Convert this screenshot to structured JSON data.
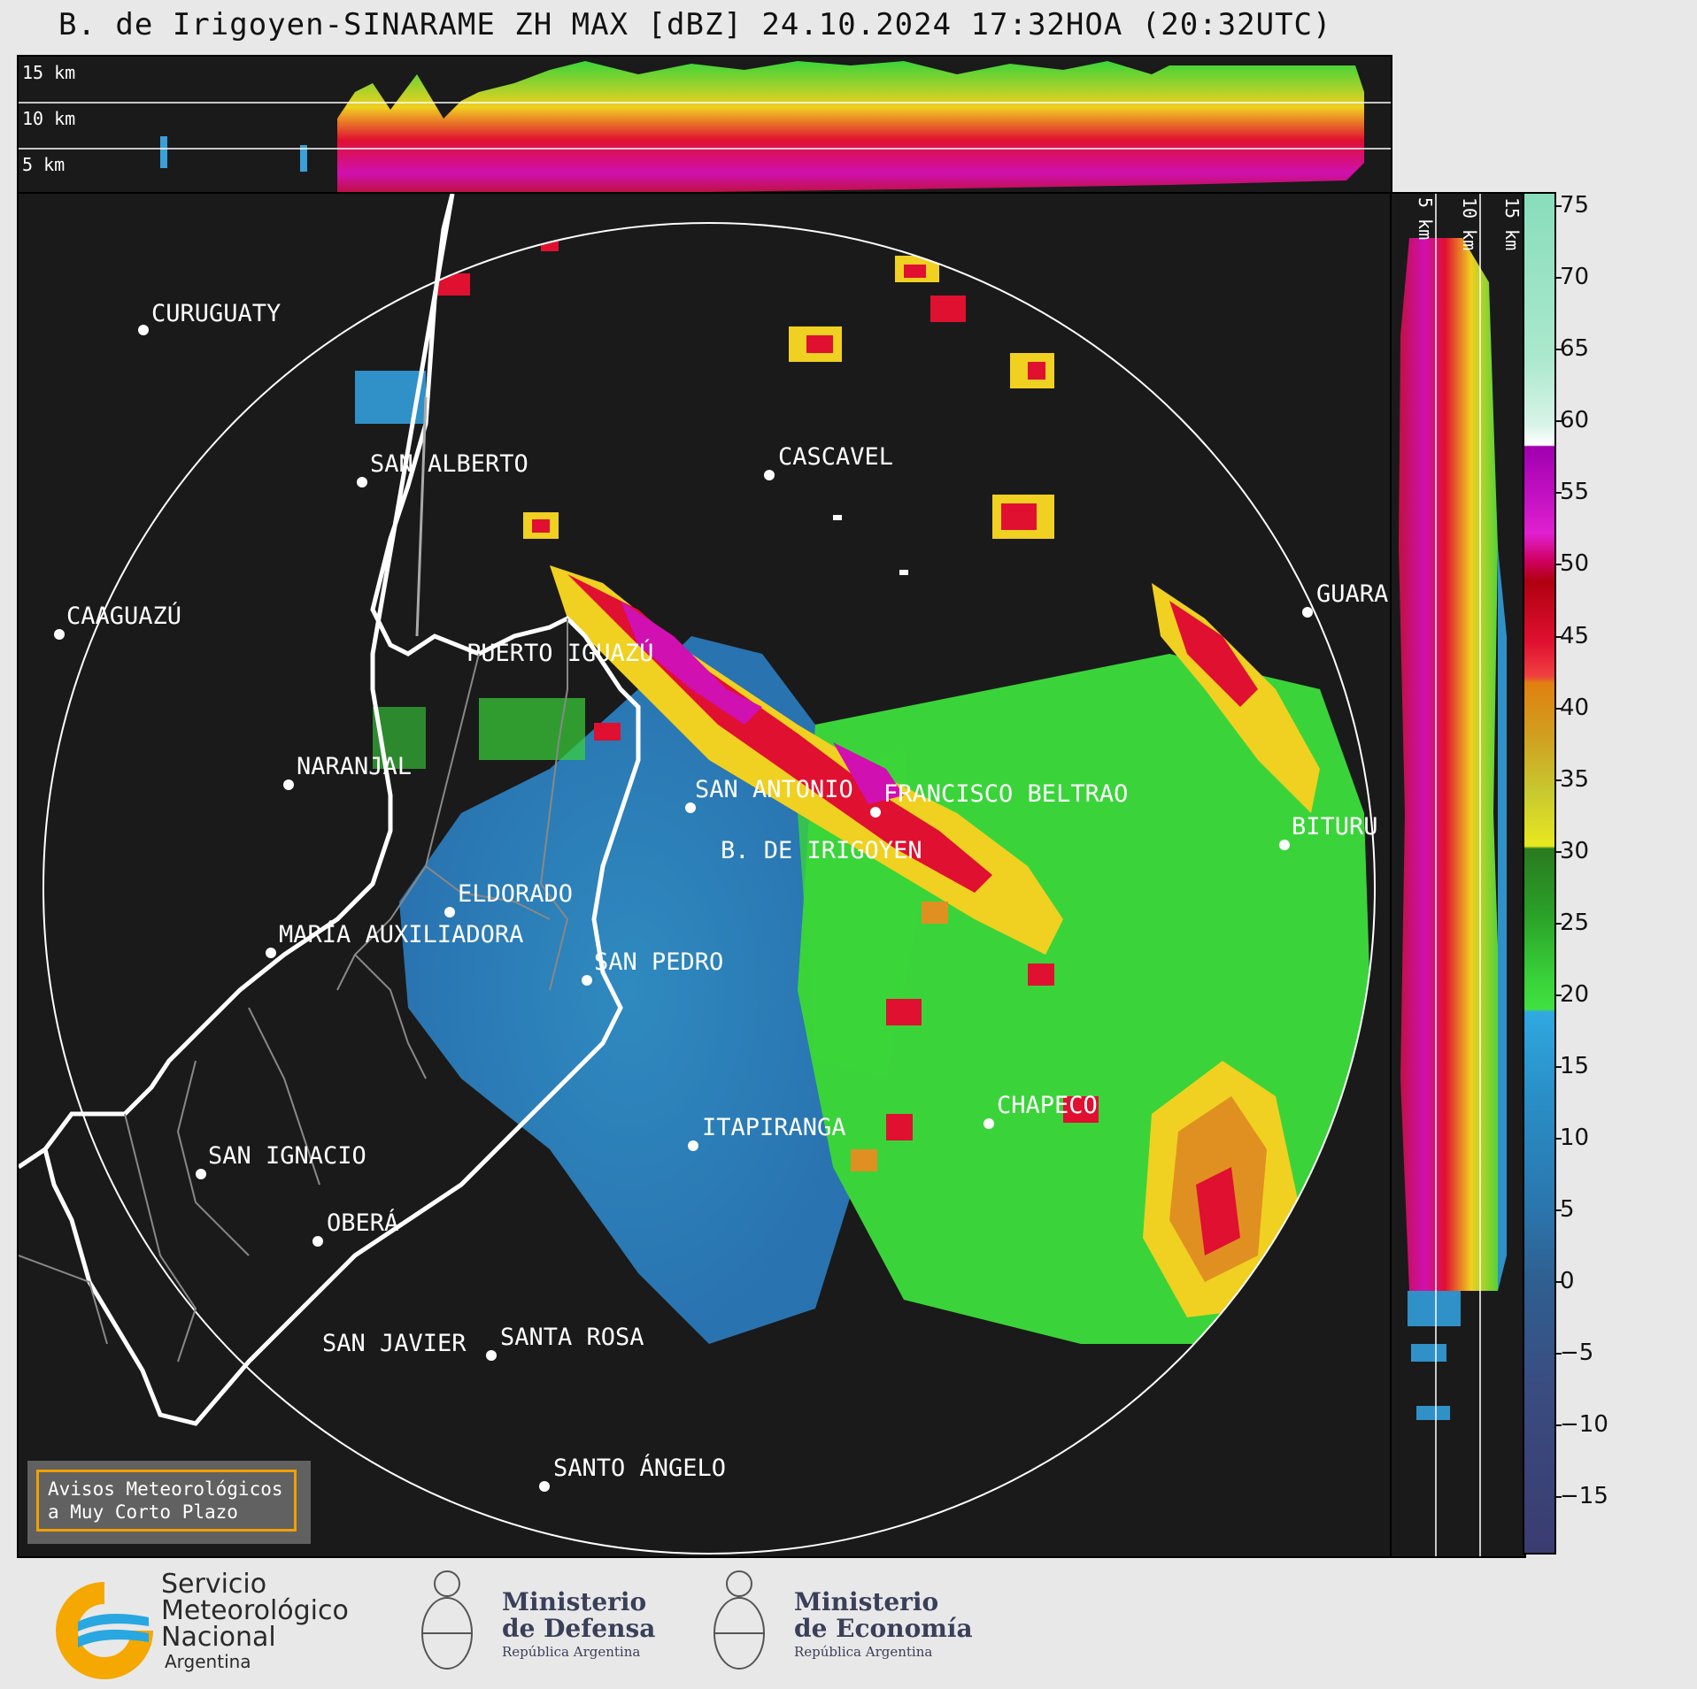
{
  "title": "B. de Irigoyen-SINARAME ZH MAX [dBZ] 24.10.2024 17:32HOA (20:32UTC)",
  "top_panel": {
    "altitude_labels": [
      "15 km",
      "10 km",
      "5 km"
    ]
  },
  "side_panel": {
    "altitude_labels": [
      "5 km",
      "10 km",
      "15 km"
    ]
  },
  "colorbar": {
    "unit": "dBZ",
    "ticks": [
      "75",
      "70",
      "65",
      "60",
      "55",
      "50",
      "45",
      "40",
      "35",
      "30",
      "25",
      "20",
      "15",
      "10",
      "5",
      "0",
      "−5",
      "−10",
      "−15"
    ],
    "range": [
      -19,
      76
    ]
  },
  "cities": [
    {
      "name": "CURUGUATY"
    },
    {
      "name": "SAN ALBERTO"
    },
    {
      "name": "CASCAVEL"
    },
    {
      "name": "CAAGUAZÚ"
    },
    {
      "name": "GUARA"
    },
    {
      "name": "PUERTO IGUAZÚ"
    },
    {
      "name": "NARANJAL"
    },
    {
      "name": "SAN ANTONIO"
    },
    {
      "name": "FRANCISCO BELTRAO"
    },
    {
      "name": "BITURU"
    },
    {
      "name": "B. DE IRIGOYEN"
    },
    {
      "name": "ELDORADO"
    },
    {
      "name": "MARÍA AUXILIADORA"
    },
    {
      "name": "SAN PEDRO"
    },
    {
      "name": "CHAPECO"
    },
    {
      "name": "ITAPIRANGA"
    },
    {
      "name": "SAN IGNACIO"
    },
    {
      "name": "OBERÁ"
    },
    {
      "name": "SAN JAVIER"
    },
    {
      "name": "SANTA ROSA"
    },
    {
      "name": "SANTO ÁNGELO"
    }
  ],
  "notice": {
    "line1": "Avisos Meteorológicos",
    "line2": "a Muy Corto Plazo"
  },
  "footer": {
    "smn": {
      "line1": "Servicio",
      "line2": "Meteorológico",
      "line3": "Nacional",
      "line4": "Argentina"
    },
    "defensa": {
      "line1": "Ministerio",
      "line2": "de Defensa",
      "line3": "República Argentina"
    },
    "economia": {
      "line1": "Ministerio",
      "line2": "de Economía",
      "line3": "República Argentina"
    }
  }
}
